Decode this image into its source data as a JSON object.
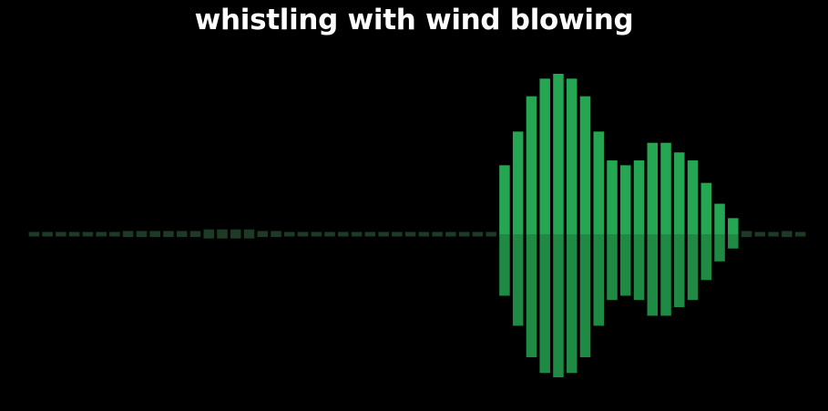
{
  "caption": "whistling with wind blowing",
  "chart_data": {
    "type": "bar",
    "orientation": "mirrored-waveform",
    "values": [
      0.01,
      0.01,
      0.01,
      0.01,
      0.01,
      0.01,
      0.01,
      0.02,
      0.02,
      0.02,
      0.02,
      0.02,
      0.02,
      0.03,
      0.03,
      0.03,
      0.03,
      0.02,
      0.02,
      0.01,
      0.01,
      0.01,
      0.0,
      0.0,
      0.0,
      0.0,
      0.0,
      0.0,
      0.0,
      0.0,
      0.0,
      0.0,
      0.01,
      0.01,
      0.01,
      0.43,
      0.64,
      0.86,
      0.97,
      1.0,
      0.97,
      0.86,
      0.64,
      0.46,
      0.43,
      0.46,
      0.57,
      0.57,
      0.51,
      0.46,
      0.32,
      0.19,
      0.1,
      0.02,
      0.01,
      0.01,
      0.02,
      0.01
    ],
    "colors": {
      "bar_top": "#25a653",
      "bar_bottom": "#1e8a44",
      "faint": "#1c3a26"
    }
  }
}
